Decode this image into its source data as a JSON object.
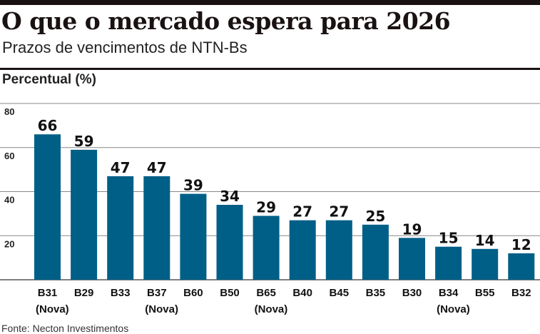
{
  "header": {
    "title": "O que o mercado espera para 2026",
    "subtitle": "Prazos de vencimentos de NTN-Bs"
  },
  "source": "Fonte: Necton Investimentos",
  "chart_data": {
    "type": "bar",
    "ylabel": "Percentual (%)",
    "ylim": [
      0,
      80
    ],
    "yticks": [
      20,
      40,
      60,
      80
    ],
    "grid": true,
    "bar_color": "#005f87",
    "categories": [
      "B31",
      "B29",
      "B33",
      "B37",
      "B60",
      "B50",
      "B65",
      "B40",
      "B45",
      "B35",
      "B30",
      "B34",
      "B55",
      "B32"
    ],
    "sublabels": [
      "(Nova)",
      "",
      "",
      "(Nova)",
      "",
      "",
      "(Nova)",
      "",
      "",
      "",
      "",
      "(Nova)",
      "",
      ""
    ],
    "values": [
      66,
      59,
      47,
      47,
      39,
      34,
      29,
      27,
      27,
      25,
      19,
      15,
      14,
      12
    ]
  }
}
